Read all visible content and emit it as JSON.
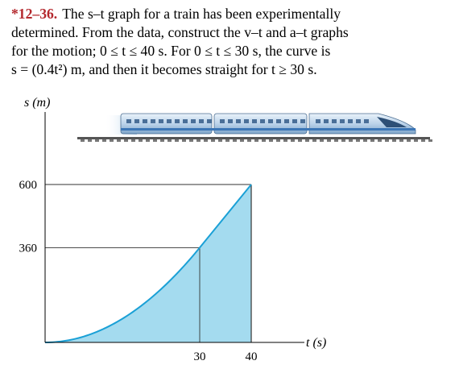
{
  "problem": {
    "number": "*12–36.",
    "lines": [
      "The s–t graph for a train has been experimentally",
      "determined. From the data, construct the v–t and a–t graphs",
      "for the motion; 0 ≤ t ≤ 40 s. For 0 ≤ t ≤ 30 s, the curve is",
      "s = (0.4t²) m, and then it becomes straight for t ≥ 30 s."
    ]
  },
  "colors": {
    "fill": "#a4dbef",
    "curve": "#1aa0d6",
    "axis": "#000000",
    "guide": "#333333",
    "problem_number": "#b4292e"
  },
  "chart_data": {
    "type": "area",
    "xlabel": "t (s)",
    "ylabel": "s (m)",
    "xlim": [
      0,
      40
    ],
    "ylim": [
      0,
      600
    ],
    "x_ticks": [
      30,
      40
    ],
    "y_ticks": [
      360,
      600
    ],
    "x_tick_labels": [
      "30",
      "40"
    ],
    "y_tick_labels": [
      "360",
      "600"
    ],
    "segments": [
      {
        "kind": "parabola",
        "equation": "s = 0.4t²",
        "t_range": [
          0,
          30
        ],
        "s_range": [
          0,
          360
        ]
      },
      {
        "kind": "line",
        "t_range": [
          30,
          40
        ],
        "s_range": [
          360,
          600
        ]
      }
    ],
    "series": [
      {
        "x": [
          0,
          5,
          10,
          15,
          20,
          25,
          30,
          40
        ],
        "y": [
          0,
          10,
          40,
          90,
          160,
          250,
          360,
          600
        ]
      }
    ],
    "illustration": "train-icon"
  }
}
